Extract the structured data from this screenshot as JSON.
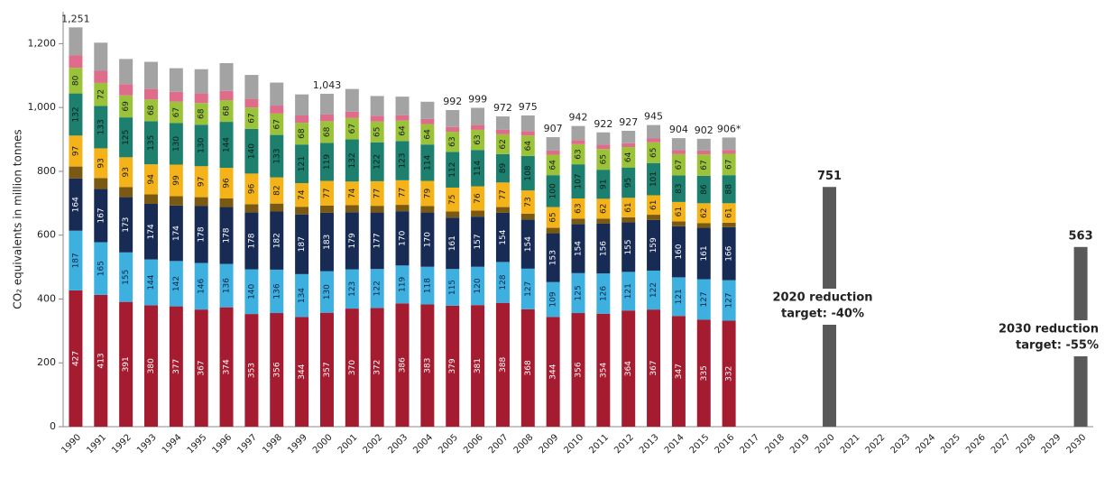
{
  "chart_data": {
    "type": "stacked_bar",
    "ylabel": "CO₂ equivalents in million tonnes",
    "categories": [
      "1990",
      "1991",
      "1992",
      "1993",
      "1994",
      "1995",
      "1996",
      "1997",
      "1998",
      "1999",
      "2000",
      "2001",
      "2002",
      "2003",
      "2004",
      "2005",
      "2006",
      "2007",
      "2008",
      "2009",
      "2010",
      "2011",
      "2012",
      "2013",
      "2014",
      "2015",
      "2016",
      "2017",
      "2018",
      "2019",
      "2020",
      "2021",
      "2022",
      "2023",
      "2024",
      "2025",
      "2026",
      "2027",
      "2028",
      "2029",
      "2030"
    ],
    "ylim": [
      0,
      1300
    ],
    "yticks": [
      0,
      200,
      400,
      600,
      800,
      {
        "value": 1000,
        "label": "1,000"
      },
      {
        "value": 1200,
        "label": "1,200"
      }
    ],
    "series": [
      {
        "color": "#a51c30",
        "show_labels": "inside",
        "label_color": "#ffffff",
        "values": [
          427,
          413,
          391,
          380,
          377,
          367,
          374,
          353,
          356,
          344,
          357,
          370,
          372,
          386,
          383,
          379,
          381,
          388,
          368,
          344,
          356,
          354,
          364,
          367,
          347,
          335,
          332,
          null,
          null,
          null,
          null,
          null,
          null,
          null,
          null,
          null,
          null,
          null,
          null,
          null,
          null
        ]
      },
      {
        "color": "#3eb0e0",
        "show_labels": "inside",
        "label_color": "#0f2447",
        "values": [
          187,
          165,
          155,
          144,
          142,
          146,
          136,
          140,
          136,
          134,
          130,
          123,
          122,
          119,
          118,
          115,
          120,
          128,
          127,
          109,
          125,
          126,
          121,
          122,
          121,
          127,
          127,
          null,
          null,
          null,
          null,
          null,
          null,
          null,
          null,
          null,
          null,
          null,
          null,
          null,
          null
        ]
      },
      {
        "color": "#172b55",
        "show_labels": "inside",
        "label_color": "#ffffff",
        "values": [
          164,
          167,
          173,
          174,
          174,
          178,
          178,
          178,
          182,
          187,
          183,
          179,
          177,
          170,
          170,
          161,
          157,
          154,
          154,
          153,
          154,
          156,
          155,
          159,
          160,
          161,
          166,
          null,
          null,
          null,
          null,
          null,
          null,
          null,
          null,
          null,
          null,
          null,
          null,
          null,
          null
        ]
      },
      {
        "color": "#7a5a12",
        "values": [
          37,
          34,
          32,
          30,
          29,
          28,
          27,
          26,
          25,
          24,
          23,
          22,
          21,
          20,
          20,
          19,
          19,
          18,
          18,
          17,
          17,
          16,
          16,
          16,
          15,
          15,
          14,
          null,
          null,
          null,
          null,
          null,
          null,
          null,
          null,
          null,
          null,
          null,
          null,
          null,
          null
        ]
      },
      {
        "color": "#f5b31a",
        "show_labels": "inside",
        "label_color": "#1a1a1a",
        "values": [
          97,
          93,
          93,
          94,
          99,
          97,
          96,
          96,
          82,
          74,
          77,
          74,
          77,
          77,
          79,
          75,
          76,
          77,
          73,
          65,
          63,
          62,
          61,
          61,
          61,
          62,
          61,
          null,
          null,
          null,
          null,
          null,
          null,
          null,
          null,
          null,
          null,
          null,
          null,
          null,
          null
        ]
      },
      {
        "color": "#1d7f6e",
        "show_labels": "inside",
        "label_color": "#0b1d1a",
        "values": [
          132,
          133,
          125,
          135,
          130,
          130,
          144,
          140,
          133,
          121,
          119,
          132,
          122,
          123,
          114,
          112,
          114,
          89,
          108,
          100,
          107,
          91,
          95,
          101,
          83,
          86,
          88,
          null,
          null,
          null,
          null,
          null,
          null,
          null,
          null,
          null,
          null,
          null,
          null,
          null,
          null
        ]
      },
      {
        "color": "#9bc33a",
        "show_labels": "inside",
        "label_color": "#1a1a1a",
        "values": [
          80,
          72,
          69,
          68,
          67,
          68,
          68,
          67,
          67,
          68,
          68,
          67,
          65,
          64,
          64,
          63,
          63,
          62,
          64,
          64,
          63,
          65,
          64,
          65,
          67,
          67,
          67,
          null,
          null,
          null,
          null,
          null,
          null,
          null,
          null,
          null,
          null,
          null,
          null,
          null,
          null
        ]
      },
      {
        "color": "#e06c8c",
        "values": [
          40,
          38,
          35,
          33,
          31,
          30,
          29,
          27,
          25,
          23,
          21,
          20,
          18,
          17,
          16,
          15,
          15,
          14,
          14,
          13,
          13,
          13,
          12,
          12,
          12,
          12,
          12,
          null,
          null,
          null,
          null,
          null,
          null,
          null,
          null,
          null,
          null,
          null,
          null,
          null,
          null
        ]
      },
      {
        "color": "#a3a3a3",
        "values": [
          87,
          88,
          79,
          85,
          74,
          76,
          87,
          75,
          72,
          66,
          65,
          71,
          62,
          58,
          54,
          53,
          54,
          42,
          49,
          42,
          44,
          39,
          39,
          42,
          38,
          37,
          39,
          null,
          null,
          null,
          null,
          null,
          null,
          null,
          null,
          null,
          null,
          null,
          null,
          null,
          null
        ]
      },
      {
        "color": "#595959",
        "show_labels": "above",
        "values": [
          null,
          null,
          null,
          null,
          null,
          null,
          null,
          null,
          null,
          null,
          null,
          null,
          null,
          null,
          null,
          null,
          null,
          null,
          null,
          null,
          null,
          null,
          null,
          null,
          null,
          null,
          null,
          null,
          null,
          null,
          751,
          null,
          null,
          null,
          null,
          null,
          null,
          null,
          null,
          null,
          563
        ]
      }
    ],
    "totals": {
      "values": [
        1251,
        null,
        null,
        null,
        null,
        null,
        null,
        null,
        null,
        null,
        1043,
        null,
        null,
        null,
        null,
        992,
        999,
        972,
        975,
        907,
        942,
        922,
        927,
        945,
        904,
        902,
        906,
        null,
        null,
        null,
        null,
        null,
        null,
        null,
        null,
        null,
        null,
        null,
        null,
        null,
        null
      ],
      "value_labels": [
        "1,251",
        null,
        null,
        null,
        null,
        null,
        null,
        null,
        null,
        null,
        "1,043",
        null,
        null,
        null,
        null,
        "992",
        "999",
        "972",
        "975",
        "907",
        "942",
        "922",
        "927",
        "945",
        "904",
        "902",
        "906*",
        null,
        null,
        null,
        null,
        null,
        null,
        null,
        null,
        null,
        null,
        null,
        null,
        null,
        null
      ]
    },
    "annotations": [
      {
        "lines": [
          "2020 reduction",
          "target: -40%"
        ]
      },
      {
        "lines": [
          "2030 reduction",
          "target: -55%"
        ]
      }
    ]
  }
}
